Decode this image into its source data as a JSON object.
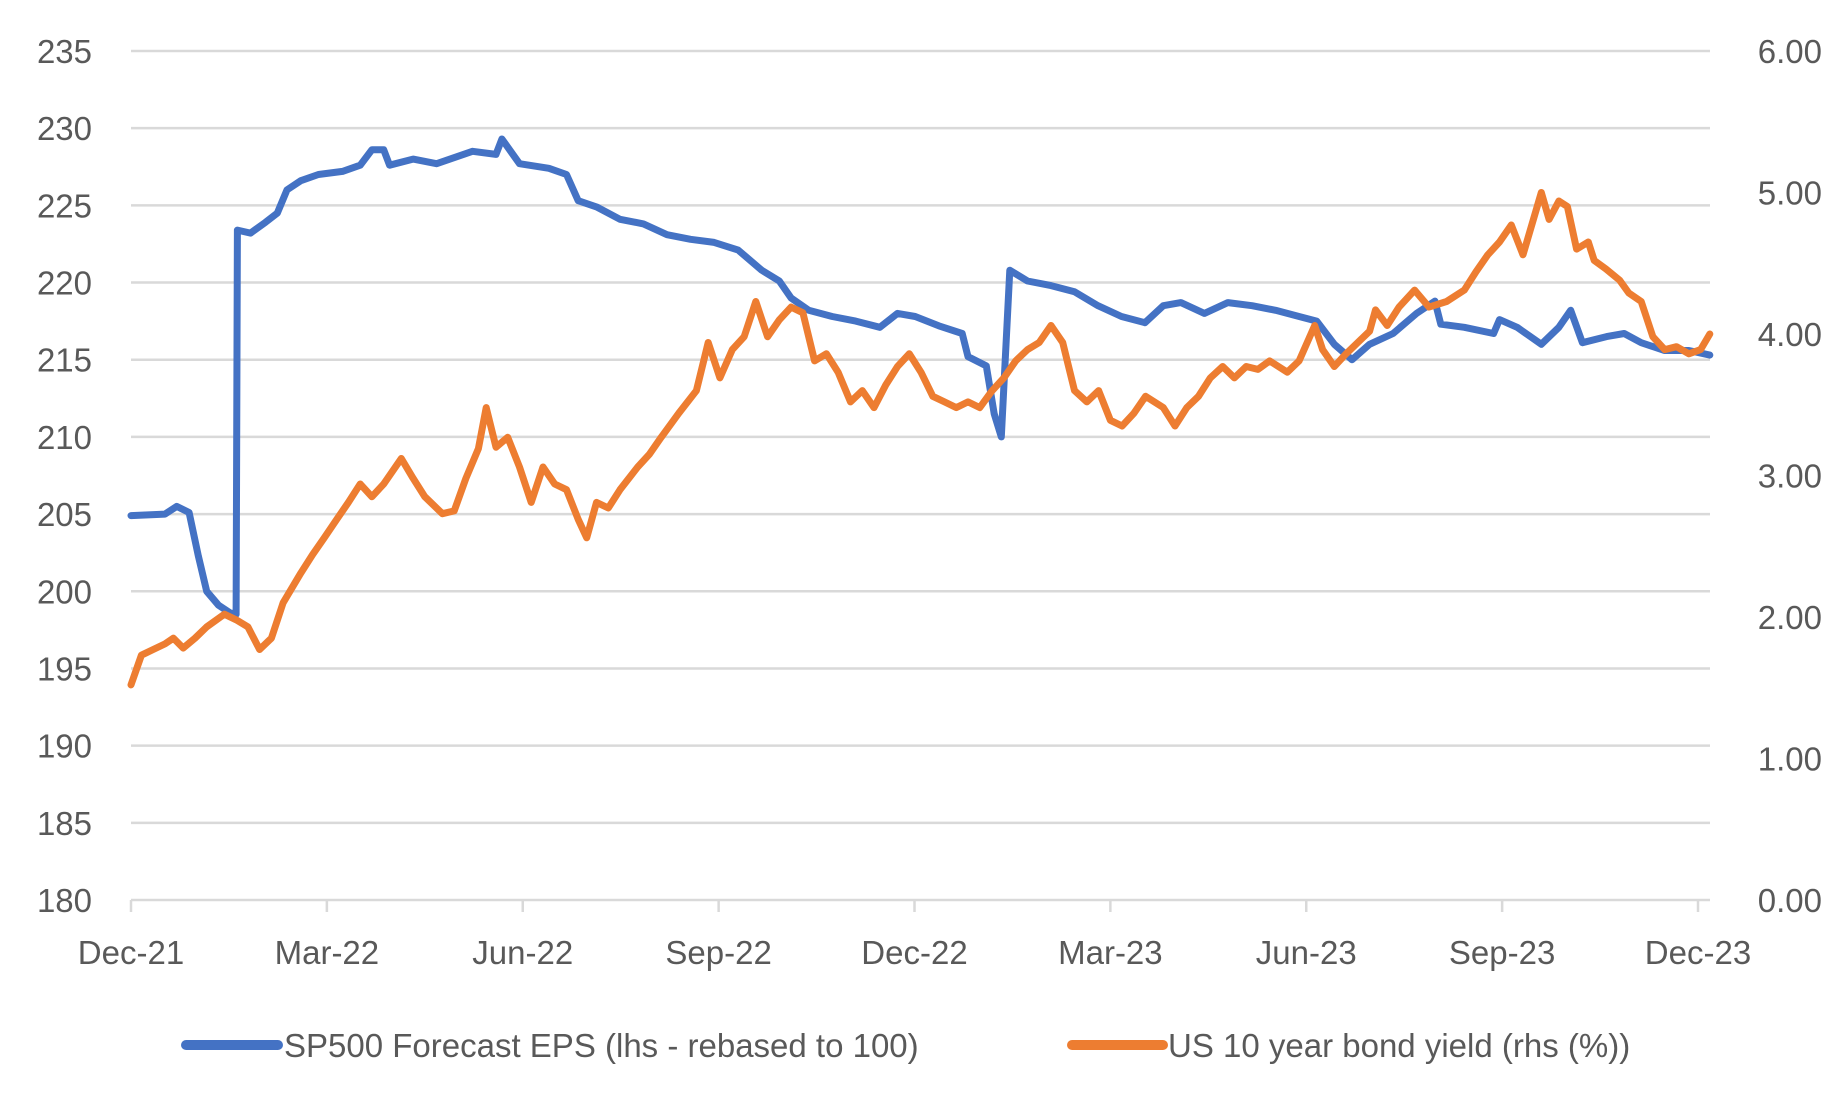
{
  "chart_data": {
    "type": "line",
    "title": "",
    "xlabel": "",
    "ylabel": "",
    "y2label": "",
    "x_unit": "months since Dec-21",
    "xlim": [
      0,
      24.18
    ],
    "ylim": [
      180,
      235
    ],
    "y2lim": [
      0,
      6
    ],
    "grid": true,
    "legend_position": "bottom",
    "x_ticks": [
      {
        "value": 0,
        "label": "Dec-21"
      },
      {
        "value": 3,
        "label": "Mar-22"
      },
      {
        "value": 6,
        "label": "Jun-22"
      },
      {
        "value": 9,
        "label": "Sep-22"
      },
      {
        "value": 12,
        "label": "Dec-22"
      },
      {
        "value": 15,
        "label": "Mar-23"
      },
      {
        "value": 18,
        "label": "Jun-23"
      },
      {
        "value": 21,
        "label": "Sep-23"
      },
      {
        "value": 24,
        "label": "Dec-23"
      }
    ],
    "y_ticks": [
      "180",
      "185",
      "190",
      "195",
      "200",
      "205",
      "210",
      "215",
      "220",
      "225",
      "230",
      "235"
    ],
    "y_tick_values": [
      180,
      185,
      190,
      195,
      200,
      205,
      210,
      215,
      220,
      225,
      230,
      235
    ],
    "y2_ticks": [
      "0.00",
      "1.00",
      "2.00",
      "3.00",
      "4.00",
      "5.00",
      "6.00"
    ],
    "y2_tick_values": [
      0,
      1,
      2,
      3,
      4,
      5,
      6
    ],
    "series": [
      {
        "name": "SP500 Forecast EPS (lhs - rebased to 100)",
        "axis": "left",
        "color": "#4472C4",
        "x": [
          0,
          0.52,
          0.7,
          0.89,
          1.03,
          1.16,
          1.34,
          1.52,
          1.61,
          1.63,
          1.83,
          2.06,
          2.24,
          2.39,
          2.6,
          2.87,
          3.24,
          3.51,
          3.69,
          3.87,
          3.96,
          4.32,
          4.68,
          5.23,
          5.59,
          5.68,
          5.95,
          6.4,
          6.67,
          6.85,
          7.13,
          7.49,
          7.85,
          8.21,
          8.57,
          8.93,
          9.3,
          9.66,
          9.93,
          10.11,
          10.38,
          10.74,
          11.1,
          11.47,
          11.74,
          12.01,
          12.37,
          12.73,
          12.82,
          13.1,
          13.22,
          13.33,
          13.46,
          13.73,
          14.09,
          14.45,
          14.81,
          15.17,
          15.53,
          15.81,
          16.08,
          16.44,
          16.8,
          17.17,
          17.53,
          17.89,
          18.16,
          18.43,
          18.7,
          18.97,
          19.33,
          19.69,
          19.97,
          20.06,
          20.42,
          20.87,
          20.96,
          21.23,
          21.6,
          21.87,
          22.05,
          22.23,
          22.6,
          22.87,
          23.13,
          23.49,
          23.86,
          24.18
        ],
        "values": [
          204.9,
          205,
          205.5,
          205.1,
          202.3,
          200,
          199.1,
          198.6,
          198.5,
          223.4,
          223.2,
          223.9,
          224.5,
          226,
          226.6,
          227,
          227.2,
          227.6,
          228.6,
          228.6,
          227.6,
          228,
          227.7,
          228.5,
          228.3,
          229.3,
          227.7,
          227.4,
          227,
          225.3,
          224.9,
          224.1,
          223.8,
          223.1,
          222.8,
          222.6,
          222.1,
          220.8,
          220.1,
          219,
          218.2,
          217.8,
          217.5,
          217.1,
          218,
          217.8,
          217.2,
          216.7,
          215.2,
          214.6,
          211.5,
          210,
          220.8,
          220.1,
          219.8,
          219.4,
          218.5,
          217.8,
          217.4,
          218.5,
          218.7,
          218,
          218.7,
          218.5,
          218.2,
          217.8,
          217.5,
          216,
          215,
          216,
          216.7,
          218,
          218.8,
          217.3,
          217.1,
          216.7,
          217.6,
          217.1,
          216,
          217.1,
          218.2,
          216.1,
          216.5,
          216.7,
          216.1,
          215.6,
          215.6,
          215.3
        ]
      },
      {
        "name": "US 10 year bond yield (rhs (%))",
        "axis": "right",
        "color": "#ED7D31",
        "x": [
          0,
          0.16,
          0.34,
          0.52,
          0.65,
          0.8,
          0.98,
          1.16,
          1.43,
          1.61,
          1.79,
          1.97,
          2.15,
          2.33,
          2.6,
          2.78,
          2.96,
          3.15,
          3.33,
          3.51,
          3.69,
          3.87,
          4.14,
          4.32,
          4.5,
          4.77,
          4.95,
          5.13,
          5.32,
          5.44,
          5.59,
          5.77,
          5.95,
          6.13,
          6.31,
          6.49,
          6.67,
          6.85,
          6.98,
          7.13,
          7.31,
          7.49,
          7.76,
          7.94,
          8.12,
          8.39,
          8.66,
          8.84,
          9.02,
          9.21,
          9.39,
          9.57,
          9.75,
          9.93,
          10.11,
          10.29,
          10.47,
          10.65,
          10.83,
          11.02,
          11.2,
          11.38,
          11.56,
          11.74,
          11.92,
          12.1,
          12.28,
          12.46,
          12.64,
          12.82,
          13.0,
          13.19,
          13.37,
          13.55,
          13.73,
          13.91,
          14.09,
          14.27,
          14.45,
          14.64,
          14.82,
          15.0,
          15.18,
          15.36,
          15.54,
          15.81,
          15.99,
          16.17,
          16.35,
          16.53,
          16.72,
          16.9,
          17.08,
          17.26,
          17.44,
          17.71,
          17.89,
          18.13,
          18.25,
          18.43,
          18.61,
          18.79,
          18.97,
          19.06,
          19.24,
          19.42,
          19.66,
          19.88,
          20.15,
          20.42,
          20.6,
          20.78,
          20.96,
          21.14,
          21.32,
          21.6,
          21.72,
          21.87,
          22.0,
          22.14,
          22.32,
          22.41,
          22.59,
          22.8,
          22.94,
          23.13,
          23.31,
          23.49,
          23.67,
          23.86,
          24.04,
          24.18
        ],
        "values": [
          1.52,
          1.73,
          1.77,
          1.81,
          1.85,
          1.78,
          1.85,
          1.93,
          2.02,
          1.98,
          1.93,
          1.77,
          1.85,
          2.1,
          2.31,
          2.44,
          2.56,
          2.69,
          2.81,
          2.94,
          2.85,
          2.94,
          3.12,
          2.98,
          2.85,
          2.73,
          2.75,
          2.98,
          3.19,
          3.48,
          3.2,
          3.27,
          3.06,
          2.81,
          3.06,
          2.94,
          2.9,
          2.69,
          2.56,
          2.81,
          2.77,
          2.9,
          3.06,
          3.15,
          3.27,
          3.44,
          3.6,
          3.94,
          3.69,
          3.89,
          3.98,
          4.23,
          3.98,
          4.1,
          4.19,
          4.15,
          3.81,
          3.86,
          3.73,
          3.52,
          3.6,
          3.48,
          3.64,
          3.77,
          3.86,
          3.73,
          3.56,
          3.52,
          3.48,
          3.52,
          3.48,
          3.6,
          3.69,
          3.81,
          3.89,
          3.94,
          4.06,
          3.94,
          3.6,
          3.52,
          3.6,
          3.39,
          3.35,
          3.44,
          3.56,
          3.48,
          3.35,
          3.48,
          3.56,
          3.69,
          3.77,
          3.69,
          3.77,
          3.75,
          3.81,
          3.73,
          3.81,
          4.06,
          3.89,
          3.77,
          3.86,
          3.94,
          4.02,
          4.17,
          4.06,
          4.19,
          4.31,
          4.19,
          4.23,
          4.31,
          4.44,
          4.56,
          4.65,
          4.77,
          4.56,
          5.0,
          4.81,
          4.94,
          4.9,
          4.6,
          4.65,
          4.52,
          4.46,
          4.38,
          4.29,
          4.23,
          3.98,
          3.89,
          3.91,
          3.86,
          3.89,
          4.0
        ]
      }
    ]
  }
}
